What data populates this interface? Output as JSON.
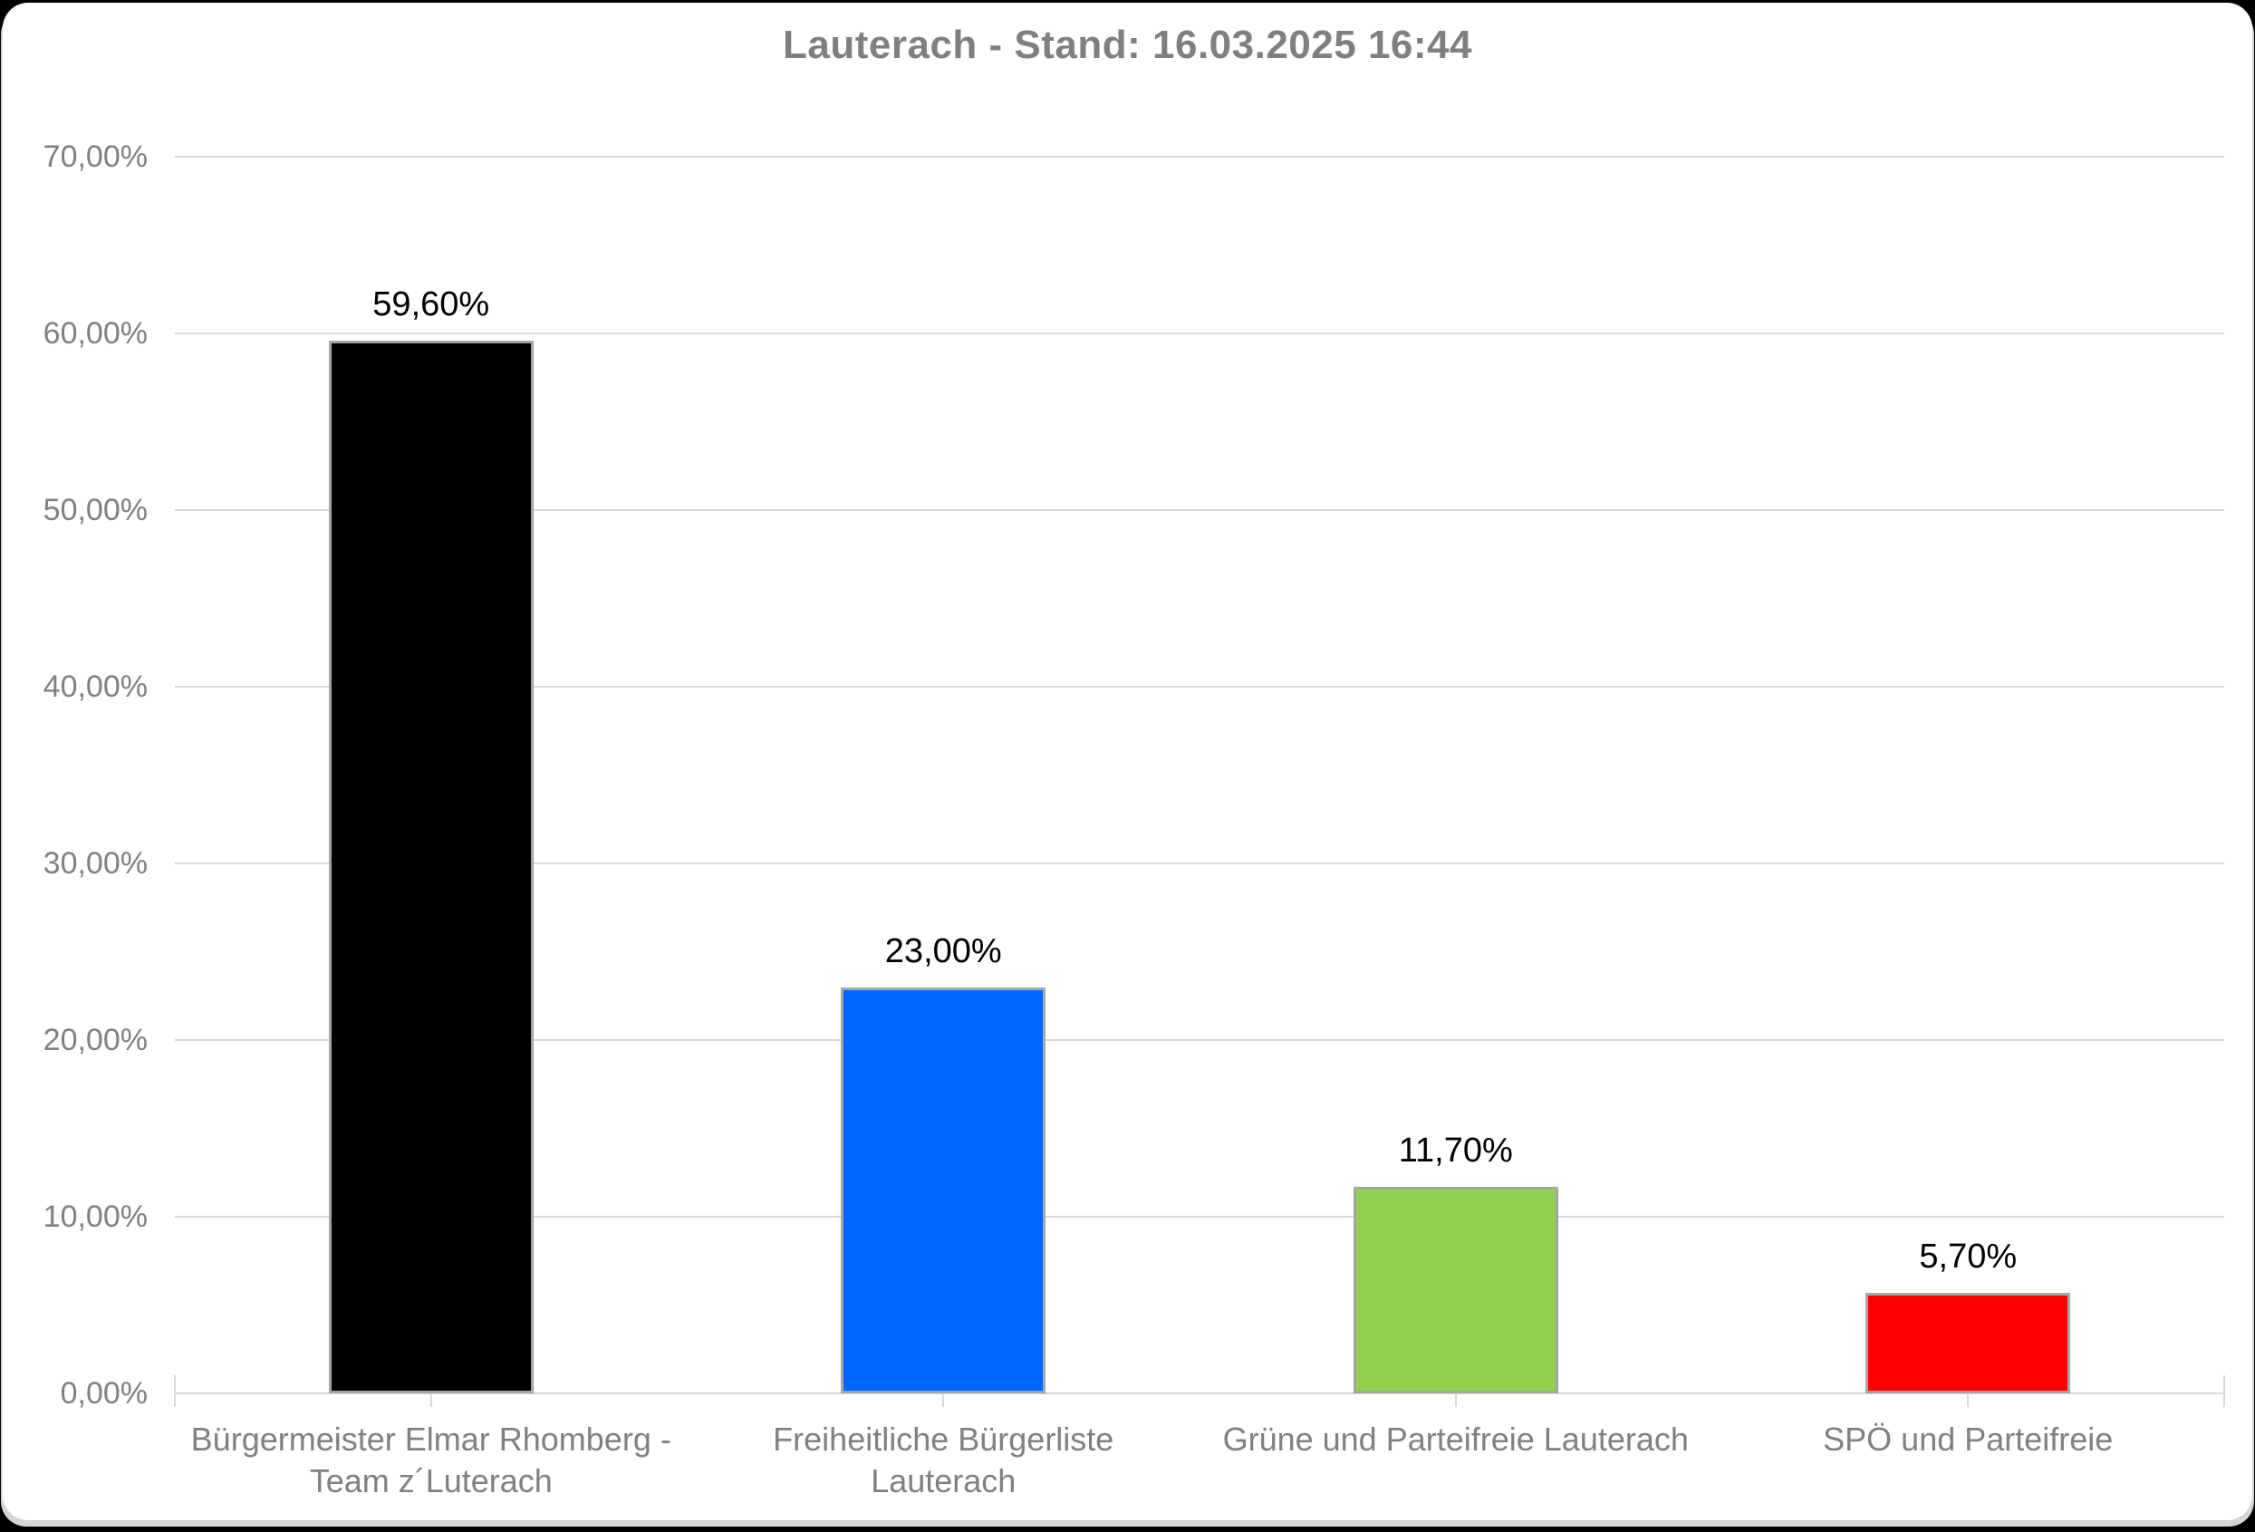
{
  "page": {
    "background_color": "#000000",
    "card_color": "#FFFFFF",
    "card_shadow_color": "#D4D4D4"
  },
  "chart_data": {
    "type": "bar",
    "title": "Lauterach - Stand: 16.03.2025 16:44",
    "title_color": "#7F7F7F",
    "categories": [
      "Bürgermeister Elmar Rhomberg - Team z´Luterach",
      "Freiheitliche Bürgerliste Lauterach",
      "Grüne und Parteifreie Lauterach",
      "SPÖ und Parteifreie"
    ],
    "values": [
      59.6,
      23.0,
      11.7,
      5.7
    ],
    "value_labels": [
      "59,60%",
      "23,00%",
      "11,70%",
      "5,70%"
    ],
    "value_label_color": "#000000",
    "bar_colors": [
      "#000000",
      "#0066FF",
      "#92D050",
      "#FF0000"
    ],
    "bar_border_color": "#A6A6A6",
    "xlabel": "",
    "ylabel": "",
    "ylim": [
      0,
      70
    ],
    "ytick_step": 10,
    "ytick_labels": [
      "0,00%",
      "10,00%",
      "20,00%",
      "30,00%",
      "40,00%",
      "50,00%",
      "60,00%",
      "70,00%"
    ],
    "grid": true,
    "gridline_color": "#D9D9D9",
    "axis_line_color": "#D9D9D9",
    "axis_text_color": "#808080",
    "legend": "none"
  }
}
